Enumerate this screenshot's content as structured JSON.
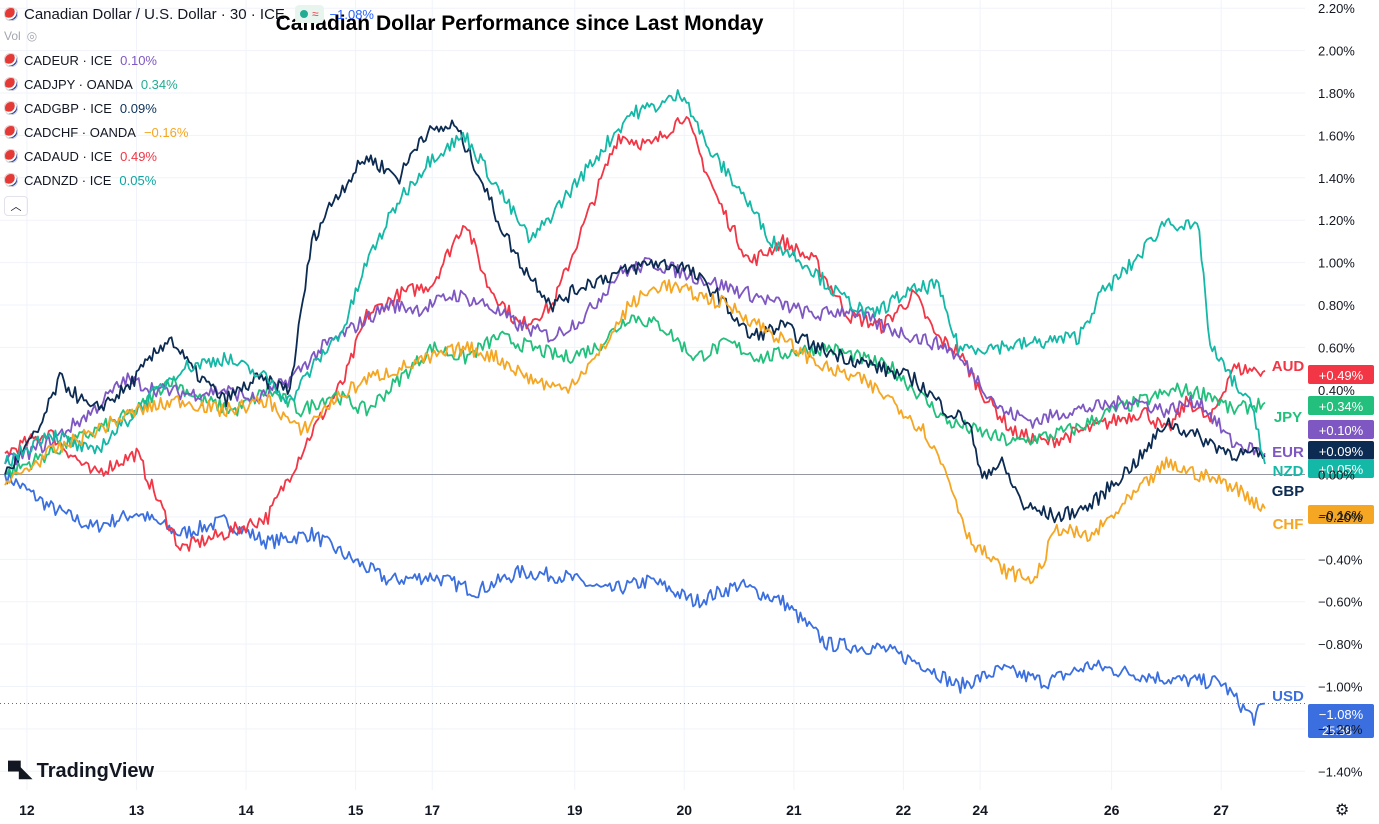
{
  "header": {
    "main_title": "Canadian Dollar / U.S. Dollar · 30 · ICE",
    "main_change": "−1.08%",
    "vol_label": "Vol",
    "collapse_icon": "chevron-up-icon",
    "settings_icon": "gear-icon"
  },
  "legend": [
    {
      "symbol": "CADEUR · ICE",
      "change": "0.10%",
      "color": "#7e57c2"
    },
    {
      "symbol": "CADJPY · OANDA",
      "change": "0.34%",
      "color": "#22ab94"
    },
    {
      "symbol": "CADGBP · ICE",
      "change": "0.09%",
      "color": "#0c3159"
    },
    {
      "symbol": "CADCHF · OANDA",
      "change": "−0.16%",
      "color": "#f5a623"
    },
    {
      "symbol": "CADAUD · ICE",
      "change": "0.49%",
      "color": "#f23645"
    },
    {
      "symbol": "CADNZD · ICE",
      "change": "0.05%",
      "color": "#0ea5a0"
    }
  ],
  "logo": "TradingView",
  "chart_data": {
    "type": "line",
    "title": "Canadian Dollar Performance since Last Monday",
    "ylim": [
      -1.46,
      2.22
    ],
    "y_ticks": [
      "2.20%",
      "2.00%",
      "1.80%",
      "1.60%",
      "1.40%",
      "1.20%",
      "1.00%",
      "0.80%",
      "0.60%",
      "0.40%",
      "0.00%",
      "−0.20%",
      "−0.40%",
      "−0.60%",
      "−0.80%",
      "−1.00%",
      "−1.20%",
      "−1.40%"
    ],
    "y_tick_values": [
      2.2,
      2.0,
      1.8,
      1.6,
      1.4,
      1.2,
      1.0,
      0.8,
      0.6,
      0.4,
      0.0,
      -0.2,
      -0.4,
      -0.6,
      -0.8,
      -1.0,
      -1.2,
      -1.4
    ],
    "x_ticks": [
      "12",
      "13",
      "14",
      "15",
      "17",
      "19",
      "20",
      "21",
      "22",
      "24",
      "26",
      "27"
    ],
    "x_tick_index": [
      2,
      12,
      22,
      32,
      39,
      52,
      62,
      72,
      82,
      89,
      101,
      111
    ],
    "n_points": 116,
    "grid": true,
    "countdown": "25:58",
    "series": [
      {
        "label": "USD",
        "color": "#3b6fe0",
        "end_label": "−1.08%",
        "end_value": -1.08,
        "points": [
          [
            0,
            0.0
          ],
          [
            4,
            -0.15
          ],
          [
            8,
            -0.25
          ],
          [
            12,
            -0.18
          ],
          [
            16,
            -0.28
          ],
          [
            20,
            -0.22
          ],
          [
            24,
            -0.32
          ],
          [
            28,
            -0.28
          ],
          [
            31,
            -0.38
          ],
          [
            35,
            -0.5
          ],
          [
            39,
            -0.48
          ],
          [
            43,
            -0.55
          ],
          [
            47,
            -0.46
          ],
          [
            51,
            -0.48
          ],
          [
            55,
            -0.55
          ],
          [
            59,
            -0.5
          ],
          [
            63,
            -0.6
          ],
          [
            67,
            -0.52
          ],
          [
            71,
            -0.6
          ],
          [
            75,
            -0.8
          ],
          [
            80,
            -0.82
          ],
          [
            84,
            -0.9
          ],
          [
            87,
            -1.0
          ],
          [
            91,
            -0.92
          ],
          [
            95,
            -0.98
          ],
          [
            99,
            -0.9
          ],
          [
            103,
            -0.94
          ],
          [
            107,
            -0.97
          ],
          [
            111,
            -0.98
          ],
          [
            113,
            -1.1
          ],
          [
            114,
            -1.15
          ],
          [
            115,
            -1.08
          ]
        ]
      },
      {
        "label": "AUD",
        "color": "#f23645",
        "end_label": "+0.49%",
        "end_value": 0.49,
        "points": [
          [
            0,
            0.1
          ],
          [
            4,
            0.2
          ],
          [
            8,
            0.0
          ],
          [
            12,
            0.1
          ],
          [
            16,
            -0.35
          ],
          [
            20,
            -0.28
          ],
          [
            24,
            -0.2
          ],
          [
            26,
            0.0
          ],
          [
            28,
            0.2
          ],
          [
            31,
            0.45
          ],
          [
            33,
            0.75
          ],
          [
            36,
            0.85
          ],
          [
            39,
            0.9
          ],
          [
            42,
            1.2
          ],
          [
            44,
            0.9
          ],
          [
            47,
            0.7
          ],
          [
            50,
            0.8
          ],
          [
            53,
            1.2
          ],
          [
            56,
            1.6
          ],
          [
            59,
            1.55
          ],
          [
            62,
            1.7
          ],
          [
            65,
            1.3
          ],
          [
            68,
            1.0
          ],
          [
            71,
            1.1
          ],
          [
            74,
            1.0
          ],
          [
            77,
            0.75
          ],
          [
            80,
            0.7
          ],
          [
            83,
            0.85
          ],
          [
            85,
            0.65
          ],
          [
            87,
            0.58
          ],
          [
            89,
            0.4
          ],
          [
            92,
            0.2
          ],
          [
            95,
            0.15
          ],
          [
            98,
            0.2
          ],
          [
            101,
            0.25
          ],
          [
            104,
            0.3
          ],
          [
            106,
            0.2
          ],
          [
            108,
            0.35
          ],
          [
            110,
            0.25
          ],
          [
            112,
            0.5
          ],
          [
            115,
            0.49
          ]
        ]
      },
      {
        "label": "JPY",
        "color": "#22c07c",
        "end_label": "+0.34%",
        "end_value": 0.34,
        "points": [
          [
            0,
            0.0
          ],
          [
            4,
            0.1
          ],
          [
            8,
            0.2
          ],
          [
            12,
            0.3
          ],
          [
            15,
            0.45
          ],
          [
            18,
            0.35
          ],
          [
            21,
            0.3
          ],
          [
            24,
            0.4
          ],
          [
            27,
            0.3
          ],
          [
            30,
            0.38
          ],
          [
            33,
            0.3
          ],
          [
            36,
            0.45
          ],
          [
            39,
            0.6
          ],
          [
            42,
            0.55
          ],
          [
            45,
            0.65
          ],
          [
            48,
            0.6
          ],
          [
            51,
            0.55
          ],
          [
            54,
            0.6
          ],
          [
            57,
            0.75
          ],
          [
            60,
            0.7
          ],
          [
            63,
            0.55
          ],
          [
            66,
            0.62
          ],
          [
            69,
            0.55
          ],
          [
            72,
            0.58
          ],
          [
            75,
            0.6
          ],
          [
            78,
            0.55
          ],
          [
            81,
            0.5
          ],
          [
            83,
            0.4
          ],
          [
            86,
            0.25
          ],
          [
            89,
            0.2
          ],
          [
            92,
            0.15
          ],
          [
            95,
            0.18
          ],
          [
            98,
            0.22
          ],
          [
            101,
            0.3
          ],
          [
            104,
            0.35
          ],
          [
            107,
            0.4
          ],
          [
            110,
            0.38
          ],
          [
            112,
            0.3
          ],
          [
            115,
            0.34
          ]
        ]
      },
      {
        "label": "EUR",
        "color": "#7e57c2",
        "end_label": "+0.10%",
        "end_value": 0.1,
        "points": [
          [
            0,
            0.05
          ],
          [
            4,
            0.15
          ],
          [
            8,
            0.3
          ],
          [
            11,
            0.45
          ],
          [
            14,
            0.4
          ],
          [
            17,
            0.38
          ],
          [
            20,
            0.4
          ],
          [
            23,
            0.35
          ],
          [
            26,
            0.45
          ],
          [
            29,
            0.6
          ],
          [
            32,
            0.7
          ],
          [
            35,
            0.8
          ],
          [
            38,
            0.78
          ],
          [
            41,
            0.85
          ],
          [
            44,
            0.8
          ],
          [
            47,
            0.7
          ],
          [
            50,
            0.65
          ],
          [
            53,
            0.75
          ],
          [
            56,
            0.95
          ],
          [
            59,
            1.0
          ],
          [
            62,
            0.95
          ],
          [
            65,
            0.9
          ],
          [
            68,
            0.85
          ],
          [
            71,
            0.8
          ],
          [
            74,
            0.75
          ],
          [
            77,
            0.78
          ],
          [
            80,
            0.7
          ],
          [
            83,
            0.65
          ],
          [
            86,
            0.6
          ],
          [
            88,
            0.5
          ],
          [
            91,
            0.3
          ],
          [
            94,
            0.25
          ],
          [
            97,
            0.3
          ],
          [
            100,
            0.32
          ],
          [
            103,
            0.35
          ],
          [
            106,
            0.3
          ],
          [
            109,
            0.35
          ],
          [
            112,
            0.15
          ],
          [
            115,
            0.1
          ]
        ]
      },
      {
        "label": "GBP",
        "color": "#0c2b52",
        "end_label": "+0.09%",
        "end_value": 0.09,
        "points": [
          [
            0,
            0.0
          ],
          [
            3,
            0.2
          ],
          [
            5,
            0.45
          ],
          [
            8,
            0.3
          ],
          [
            11,
            0.4
          ],
          [
            15,
            0.65
          ],
          [
            17,
            0.5
          ],
          [
            20,
            0.35
          ],
          [
            23,
            0.45
          ],
          [
            26,
            0.4
          ],
          [
            28,
            1.1
          ],
          [
            30,
            1.3
          ],
          [
            33,
            1.5
          ],
          [
            36,
            1.4
          ],
          [
            38,
            1.6
          ],
          [
            41,
            1.65
          ],
          [
            43,
            1.45
          ],
          [
            45,
            1.2
          ],
          [
            47,
            1.0
          ],
          [
            50,
            0.8
          ],
          [
            53,
            0.9
          ],
          [
            56,
            0.95
          ],
          [
            59,
            1.0
          ],
          [
            62,
            0.98
          ],
          [
            65,
            0.85
          ],
          [
            68,
            0.65
          ],
          [
            71,
            0.7
          ],
          [
            74,
            0.6
          ],
          [
            77,
            0.55
          ],
          [
            80,
            0.5
          ],
          [
            83,
            0.45
          ],
          [
            86,
            0.3
          ],
          [
            88,
            0.25
          ],
          [
            89,
            0.0
          ],
          [
            91,
            0.05
          ],
          [
            93,
            -0.15
          ],
          [
            96,
            -0.2
          ],
          [
            99,
            -0.15
          ],
          [
            102,
            0.0
          ],
          [
            104,
            0.1
          ],
          [
            106,
            0.25
          ],
          [
            108,
            0.2
          ],
          [
            110,
            0.15
          ],
          [
            112,
            0.1
          ],
          [
            115,
            0.09
          ]
        ]
      },
      {
        "label": "NZD",
        "color": "#14b8a6",
        "end_label": "+0.05%",
        "end_value": 0.05,
        "points": [
          [
            0,
            0.05
          ],
          [
            4,
            0.2
          ],
          [
            8,
            0.1
          ],
          [
            12,
            0.3
          ],
          [
            16,
            0.5
          ],
          [
            20,
            0.55
          ],
          [
            24,
            0.45
          ],
          [
            26,
            0.35
          ],
          [
            28,
            0.5
          ],
          [
            31,
            0.7
          ],
          [
            33,
            1.0
          ],
          [
            36,
            1.3
          ],
          [
            39,
            1.5
          ],
          [
            42,
            1.6
          ],
          [
            45,
            1.35
          ],
          [
            48,
            1.1
          ],
          [
            51,
            1.3
          ],
          [
            54,
            1.5
          ],
          [
            57,
            1.7
          ],
          [
            60,
            1.75
          ],
          [
            62,
            1.8
          ],
          [
            64,
            1.55
          ],
          [
            67,
            1.35
          ],
          [
            70,
            1.1
          ],
          [
            73,
            1.0
          ],
          [
            76,
            0.85
          ],
          [
            79,
            0.75
          ],
          [
            82,
            0.85
          ],
          [
            85,
            0.9
          ],
          [
            87,
            0.6
          ],
          [
            90,
            0.6
          ],
          [
            94,
            0.62
          ],
          [
            98,
            0.65
          ],
          [
            100,
            0.85
          ],
          [
            103,
            1.0
          ],
          [
            106,
            1.2
          ],
          [
            109,
            1.15
          ],
          [
            110,
            0.6
          ],
          [
            112,
            0.45
          ],
          [
            114,
            0.3
          ],
          [
            115,
            0.05
          ]
        ]
      },
      {
        "label": "CHF",
        "color": "#f5a623",
        "end_label": "−0.16%",
        "end_value": -0.16,
        "points": [
          [
            0,
            -0.05
          ],
          [
            4,
            0.1
          ],
          [
            8,
            0.2
          ],
          [
            12,
            0.3
          ],
          [
            16,
            0.35
          ],
          [
            20,
            0.3
          ],
          [
            24,
            0.35
          ],
          [
            27,
            0.2
          ],
          [
            30,
            0.35
          ],
          [
            33,
            0.45
          ],
          [
            36,
            0.5
          ],
          [
            39,
            0.55
          ],
          [
            42,
            0.6
          ],
          [
            45,
            0.55
          ],
          [
            48,
            0.45
          ],
          [
            51,
            0.4
          ],
          [
            54,
            0.55
          ],
          [
            57,
            0.8
          ],
          [
            60,
            0.9
          ],
          [
            63,
            0.85
          ],
          [
            66,
            0.8
          ],
          [
            69,
            0.7
          ],
          [
            72,
            0.6
          ],
          [
            75,
            0.5
          ],
          [
            78,
            0.45
          ],
          [
            81,
            0.35
          ],
          [
            84,
            0.2
          ],
          [
            86,
            0.0
          ],
          [
            88,
            -0.3
          ],
          [
            91,
            -0.45
          ],
          [
            94,
            -0.5
          ],
          [
            96,
            -0.25
          ],
          [
            99,
            -0.3
          ],
          [
            102,
            -0.15
          ],
          [
            104,
            -0.05
          ],
          [
            106,
            0.05
          ],
          [
            109,
            0.0
          ],
          [
            112,
            -0.05
          ],
          [
            115,
            -0.16
          ]
        ]
      }
    ]
  }
}
